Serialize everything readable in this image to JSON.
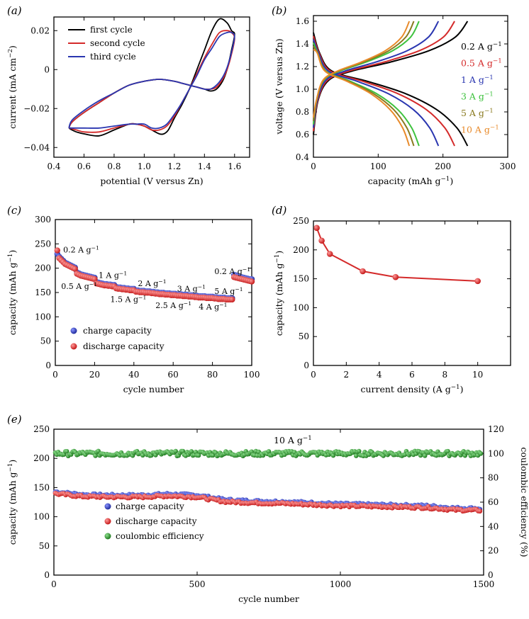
{
  "panels": {
    "a": {
      "tag": "(a)"
    },
    "b": {
      "tag": "(b)"
    },
    "c": {
      "tag": "(c)"
    },
    "d": {
      "tag": "(d)"
    },
    "e": {
      "tag": "(e)"
    }
  },
  "chart_data": [
    {
      "id": "a",
      "type": "line",
      "title": "",
      "xlabel": "potential (V versus Zn)",
      "ylabel": "current (mA cm−2)",
      "xlim": [
        0.4,
        1.7
      ],
      "ylim": [
        -0.045,
        0.027
      ],
      "xticks": [
        0.4,
        0.6,
        0.8,
        1.0,
        1.2,
        1.4,
        1.6
      ],
      "xtick_labels": [
        "0.4",
        "0.6",
        "0.8",
        "1.0",
        "1.2",
        "1.4",
        "1.6"
      ],
      "yticks": [
        0.02,
        0,
        -0.02,
        -0.04
      ],
      "ytick_labels": [
        "0.02",
        "0",
        "−0.02",
        "−0.04"
      ],
      "legend": [
        "first cycle",
        "second cycle",
        "third cycle"
      ],
      "legend_position": "top-left",
      "series": [
        {
          "name": "first cycle",
          "color": "#000000",
          "x": [
            0.5,
            0.52,
            0.55,
            0.6,
            0.7,
            0.8,
            0.9,
            0.95,
            1.0,
            1.05,
            1.1,
            1.13,
            1.16,
            1.2,
            1.25,
            1.3,
            1.35,
            1.4,
            1.45,
            1.5,
            1.55,
            1.58,
            1.6,
            1.58,
            1.55,
            1.52,
            1.48,
            1.44,
            1.4,
            1.35,
            1.3,
            1.25,
            1.2,
            1.1,
            1.0,
            0.9,
            0.8,
            0.7,
            0.6,
            0.52,
            0.5
          ],
          "y": [
            -0.03,
            -0.031,
            -0.032,
            -0.033,
            -0.034,
            -0.031,
            -0.028,
            -0.028,
            -0.029,
            -0.031,
            -0.033,
            -0.033,
            -0.031,
            -0.025,
            -0.018,
            -0.01,
            0.0,
            0.01,
            0.02,
            0.026,
            0.024,
            0.02,
            0.018,
            0.01,
            0.0,
            -0.006,
            -0.01,
            -0.011,
            -0.01,
            -0.009,
            -0.008,
            -0.007,
            -0.006,
            -0.005,
            -0.006,
            -0.008,
            -0.012,
            -0.017,
            -0.022,
            -0.027,
            -0.03
          ]
        },
        {
          "name": "second cycle",
          "color": "#d42a2a",
          "x": [
            0.5,
            0.55,
            0.6,
            0.7,
            0.8,
            0.9,
            0.95,
            1.0,
            1.05,
            1.1,
            1.15,
            1.2,
            1.25,
            1.3,
            1.35,
            1.4,
            1.45,
            1.5,
            1.55,
            1.58,
            1.6,
            1.58,
            1.55,
            1.52,
            1.48,
            1.44,
            1.4,
            1.35,
            1.3,
            1.25,
            1.2,
            1.1,
            1.0,
            0.9,
            0.8,
            0.7,
            0.6,
            0.52,
            0.5
          ],
          "y": [
            -0.03,
            -0.031,
            -0.032,
            -0.032,
            -0.03,
            -0.028,
            -0.028,
            -0.029,
            -0.031,
            -0.031,
            -0.029,
            -0.024,
            -0.017,
            -0.01,
            -0.002,
            0.006,
            0.013,
            0.019,
            0.02,
            0.019,
            0.016,
            0.008,
            0.0,
            -0.005,
            -0.009,
            -0.01,
            -0.01,
            -0.009,
            -0.008,
            -0.007,
            -0.006,
            -0.005,
            -0.006,
            -0.008,
            -0.012,
            -0.017,
            -0.022,
            -0.027,
            -0.03
          ]
        },
        {
          "name": "third cycle",
          "color": "#2a36b0",
          "x": [
            0.5,
            0.55,
            0.6,
            0.7,
            0.8,
            0.9,
            0.95,
            1.0,
            1.05,
            1.1,
            1.15,
            1.2,
            1.25,
            1.3,
            1.35,
            1.4,
            1.45,
            1.5,
            1.55,
            1.58,
            1.6,
            1.58,
            1.55,
            1.52,
            1.48,
            1.44,
            1.4,
            1.35,
            1.3,
            1.25,
            1.2,
            1.1,
            1.0,
            0.9,
            0.8,
            0.7,
            0.6,
            0.52,
            0.5
          ],
          "y": [
            -0.03,
            -0.03,
            -0.03,
            -0.03,
            -0.029,
            -0.028,
            -0.028,
            -0.028,
            -0.03,
            -0.03,
            -0.028,
            -0.023,
            -0.017,
            -0.01,
            -0.003,
            0.005,
            0.011,
            0.017,
            0.019,
            0.019,
            0.017,
            0.009,
            0.001,
            -0.004,
            -0.008,
            -0.01,
            -0.01,
            -0.009,
            -0.008,
            -0.007,
            -0.006,
            -0.005,
            -0.006,
            -0.008,
            -0.012,
            -0.016,
            -0.021,
            -0.026,
            -0.03
          ]
        }
      ]
    },
    {
      "id": "b",
      "type": "line",
      "title": "",
      "xlabel": "capacity (mAh g−1)",
      "ylabel": "voltage (V versus Zn)",
      "xlim": [
        0,
        300
      ],
      "ylim": [
        0.4,
        1.65
      ],
      "xticks": [
        0,
        100,
        200,
        300
      ],
      "xtick_labels": [
        "0",
        "100",
        "200",
        "300"
      ],
      "yticks": [
        0.4,
        0.6,
        0.8,
        1.0,
        1.2,
        1.4,
        1.6
      ],
      "ytick_labels": [
        "0.4",
        "0.6",
        "0.8",
        "1.0",
        "1.2",
        "1.4",
        "1.6"
      ],
      "legend_position": "right",
      "series": [
        {
          "name": "0.2 A g−1",
          "color": "#000000",
          "capacity": 238
        },
        {
          "name": "0.5 A g−1",
          "color": "#d42a2a",
          "capacity": 218
        },
        {
          "name": "1 A g−1",
          "color": "#2a36b0",
          "capacity": 193
        },
        {
          "name": "3 A g−1",
          "color": "#3ec23e",
          "capacity": 163
        },
        {
          "name": "5 A g−1",
          "color": "#8a7a20",
          "capacity": 155
        },
        {
          "name": "10 A g−1",
          "color": "#e88a2a",
          "capacity": 148
        }
      ],
      "v_max": 1.6,
      "v_min": 0.5
    },
    {
      "id": "c",
      "type": "scatter",
      "title": "",
      "xlabel": "cycle number",
      "ylabel": "capacity (mAh g−1)",
      "xlim": [
        0,
        100
      ],
      "ylim": [
        0,
        300
      ],
      "xticks": [
        0,
        20,
        40,
        60,
        80,
        100
      ],
      "xtick_labels": [
        "0",
        "20",
        "40",
        "60",
        "80",
        "100"
      ],
      "yticks": [
        0,
        50,
        100,
        150,
        200,
        250,
        300
      ],
      "ytick_labels": [
        "0",
        "50",
        "100",
        "150",
        "200",
        "250",
        "300"
      ],
      "legend": [
        "charge capacity",
        "discharge capacity"
      ],
      "legend_position": "lower-left",
      "colors": {
        "charge": "#2a36b0",
        "discharge": "#d42a2a"
      },
      "rate_labels": [
        {
          "text": "0.2 A g−1",
          "x": 4,
          "y": 232
        },
        {
          "text": "0.5 A g−1",
          "x": 3,
          "y": 157
        },
        {
          "text": "1 A g−1",
          "x": 22,
          "y": 180
        },
        {
          "text": "1.5 A g−1",
          "x": 28,
          "y": 130
        },
        {
          "text": "2 A g−1",
          "x": 42,
          "y": 163
        },
        {
          "text": "2.5 A g−1",
          "x": 51,
          "y": 118
        },
        {
          "text": "3 A g−1",
          "x": 62,
          "y": 152
        },
        {
          "text": "4 A g−1",
          "x": 73,
          "y": 115
        },
        {
          "text": "5 A g−1",
          "x": 81,
          "y": 147
        },
        {
          "text": "0.2 A g−1",
          "x": 81,
          "y": 188
        }
      ],
      "cycles": [
        1,
        2,
        3,
        4,
        5,
        6,
        7,
        8,
        9,
        10,
        11,
        12,
        13,
        14,
        15,
        16,
        17,
        18,
        19,
        20,
        21,
        22,
        23,
        24,
        25,
        26,
        27,
        28,
        29,
        30,
        31,
        32,
        33,
        34,
        35,
        36,
        37,
        38,
        39,
        40,
        41,
        42,
        43,
        44,
        45,
        46,
        47,
        48,
        49,
        50,
        51,
        52,
        53,
        54,
        55,
        56,
        57,
        58,
        59,
        60,
        61,
        62,
        63,
        64,
        65,
        66,
        67,
        68,
        69,
        70,
        71,
        72,
        73,
        74,
        75,
        76,
        77,
        78,
        79,
        80,
        81,
        82,
        83,
        84,
        85,
        86,
        87,
        88,
        89,
        90,
        91,
        92,
        93,
        94,
        95,
        96,
        97,
        98,
        99,
        100
      ],
      "charge": [
        228,
        222,
        218,
        214,
        210,
        208,
        206,
        204,
        202,
        200,
        190,
        188,
        186,
        185,
        184,
        183,
        182,
        181,
        180,
        179,
        170,
        169,
        168,
        167,
        166,
        166,
        165,
        165,
        164,
        164,
        160,
        159,
        159,
        158,
        158,
        157,
        157,
        156,
        156,
        156,
        153,
        153,
        152,
        152,
        152,
        151,
        151,
        151,
        150,
        150,
        149,
        149,
        148,
        148,
        148,
        147,
        147,
        147,
        146,
        146,
        146,
        145,
        145,
        145,
        144,
        144,
        144,
        143,
        143,
        143,
        142,
        142,
        141,
        141,
        141,
        141,
        140,
        140,
        140,
        140,
        139,
        139,
        138,
        138,
        138,
        138,
        137,
        137,
        137,
        137,
        185,
        184,
        182,
        181,
        180,
        179,
        178,
        177,
        176,
        176
      ],
      "discharge": [
        238,
        222,
        218,
        214,
        210,
        208,
        206,
        204,
        202,
        200,
        190,
        188,
        186,
        185,
        184,
        183,
        182,
        181,
        180,
        179,
        170,
        169,
        168,
        167,
        166,
        166,
        165,
        165,
        164,
        164,
        160,
        159,
        159,
        158,
        158,
        157,
        157,
        156,
        156,
        156,
        153,
        153,
        152,
        152,
        152,
        151,
        151,
        151,
        150,
        150,
        149,
        149,
        148,
        148,
        148,
        147,
        147,
        147,
        146,
        146,
        146,
        145,
        145,
        145,
        144,
        144,
        144,
        143,
        143,
        143,
        142,
        142,
        141,
        141,
        141,
        141,
        140,
        140,
        140,
        140,
        139,
        139,
        138,
        138,
        138,
        138,
        137,
        137,
        137,
        137,
        183,
        182,
        181,
        180,
        179,
        178,
        177,
        176,
        175,
        174
      ]
    },
    {
      "id": "d",
      "type": "line",
      "title": "",
      "xlabel": "current density (A g−1)",
      "ylabel": "capacity (mAh g−1)",
      "xlim": [
        0,
        12
      ],
      "ylim": [
        0,
        250
      ],
      "xticks": [
        0,
        2,
        4,
        6,
        8,
        10
      ],
      "xtick_labels": [
        "0",
        "2",
        "4",
        "6",
        "8",
        "10"
      ],
      "yticks": [
        0,
        50,
        100,
        150,
        200,
        250
      ],
      "ytick_labels": [
        "0",
        "50",
        "100",
        "150",
        "200",
        "250"
      ],
      "color": "#d42a2a",
      "x": [
        0.2,
        0.5,
        1,
        3,
        5,
        10
      ],
      "y": [
        238,
        216,
        193,
        163,
        153,
        146
      ]
    },
    {
      "id": "e",
      "type": "scatter",
      "title": "",
      "xlabel": "cycle number",
      "ylabel": "capacity (mAh g−1)",
      "ylabel_right": "coulombic efficiency (%)",
      "annotation": "10 A g−1",
      "xlim": [
        0,
        1500
      ],
      "ylim": [
        0,
        250
      ],
      "ylim_right": [
        0,
        120
      ],
      "xticks": [
        0,
        500,
        1000,
        1500
      ],
      "xtick_labels": [
        "0",
        "500",
        "1000",
        "1500"
      ],
      "yticks": [
        0,
        50,
        100,
        150,
        200,
        250
      ],
      "ytick_labels": [
        "0",
        "50",
        "100",
        "150",
        "200",
        "250"
      ],
      "yticks_right": [
        0,
        20,
        40,
        60,
        80,
        100,
        120
      ],
      "ytick_labels_right": [
        "0",
        "20",
        "40",
        "60",
        "80",
        "100",
        "120"
      ],
      "legend": [
        "charge capacity",
        "discharge capacity",
        "coulombic efficiency"
      ],
      "legend_position": "lower-left",
      "colors": {
        "charge": "#2a36b0",
        "discharge": "#d42a2a",
        "efficiency": "#2e8b2e"
      },
      "trend_cycles": [
        0,
        100,
        200,
        300,
        400,
        500,
        560,
        600,
        700,
        800,
        900,
        1000,
        1100,
        1200,
        1300,
        1400,
        1500
      ],
      "trend_capacity": [
        141,
        136,
        135,
        135,
        137,
        135,
        130,
        127,
        125,
        124,
        122,
        120,
        119,
        118,
        117,
        113,
        112
      ],
      "efficiency_mean": 100
    }
  ]
}
